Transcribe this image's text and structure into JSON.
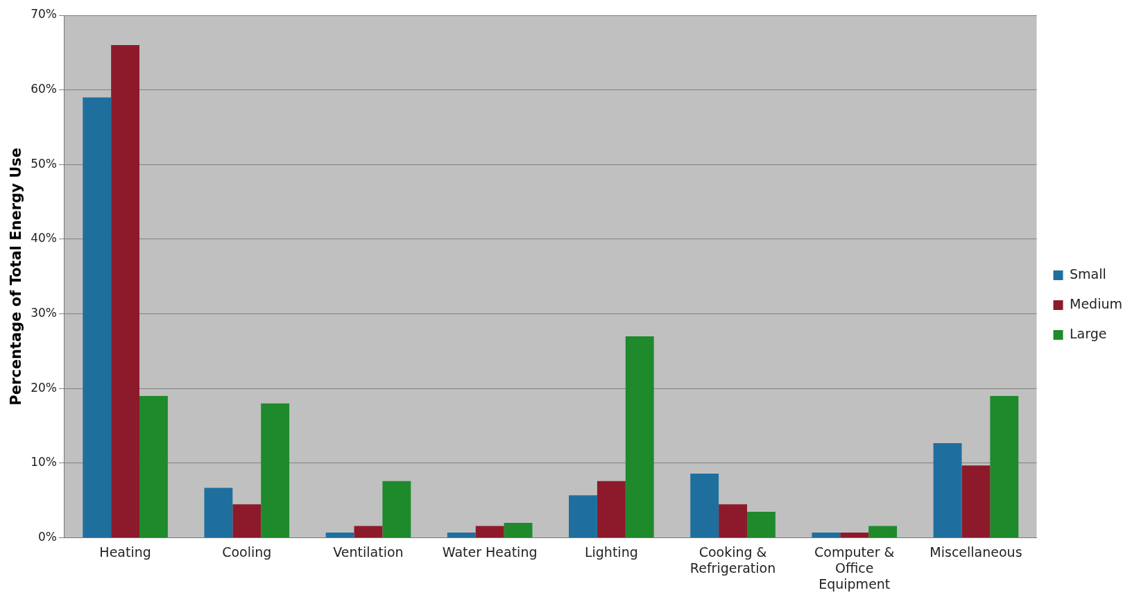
{
  "chart_data": {
    "type": "bar",
    "ylabel": "Percentage of Total Energy Use",
    "categories": [
      "Heating",
      "Cooling",
      "Ventilation",
      "Water Heating",
      "Lighting",
      "Cooking & Refrigeration",
      "Computer & Office Equipment",
      "Miscellaneous"
    ],
    "series": [
      {
        "name": "Small",
        "color": "#1f6f9e",
        "values": [
          59,
          6.7,
          0.7,
          0.7,
          5.7,
          8.6,
          0.7,
          12.7
        ]
      },
      {
        "name": "Medium",
        "color": "#8c1a2b",
        "values": [
          66,
          4.5,
          1.6,
          1.6,
          7.6,
          4.5,
          0.7,
          9.7
        ]
      },
      {
        "name": "Large",
        "color": "#1e8a2c",
        "values": [
          19,
          18,
          7.6,
          2.0,
          27,
          3.5,
          1.6,
          19
        ]
      }
    ],
    "ylim": [
      0,
      70
    ],
    "yticks": [
      {
        "value": 0,
        "label": "0%"
      },
      {
        "value": 10,
        "label": "10%"
      },
      {
        "value": 20,
        "label": "20%"
      },
      {
        "value": 30,
        "label": "30%"
      },
      {
        "value": 40,
        "label": "40%"
      },
      {
        "value": 50,
        "label": "50%"
      },
      {
        "value": 60,
        "label": "60%"
      },
      {
        "value": 70,
        "label": "70%"
      }
    ],
    "grid": "y",
    "legend": "right"
  }
}
